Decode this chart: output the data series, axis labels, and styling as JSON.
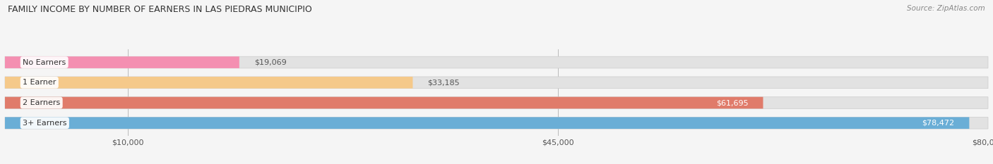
{
  "title": "FAMILY INCOME BY NUMBER OF EARNERS IN LAS PIEDRAS MUNICIPIO",
  "source": "Source: ZipAtlas.com",
  "categories": [
    "No Earners",
    "1 Earner",
    "2 Earners",
    "3+ Earners"
  ],
  "values": [
    19069,
    33185,
    61695,
    78472
  ],
  "bar_colors": [
    "#f48fb1",
    "#f5c98a",
    "#e07b6a",
    "#6aaed6"
  ],
  "label_colors": [
    "#333333",
    "#333333",
    "#ffffff",
    "#ffffff"
  ],
  "value_labels": [
    "$19,069",
    "$33,185",
    "$61,695",
    "$78,472"
  ],
  "x_max": 80000,
  "x_ticks": [
    10000,
    45000,
    80000
  ],
  "x_tick_labels": [
    "$10,000",
    "$45,000",
    "$80,000"
  ],
  "title_fontsize": 9,
  "source_fontsize": 7.5,
  "bar_label_fontsize": 8,
  "value_label_fontsize": 8,
  "tick_fontsize": 8,
  "fig_bg_color": "#f5f5f5",
  "bar_bg_color": "#e2e2e2"
}
